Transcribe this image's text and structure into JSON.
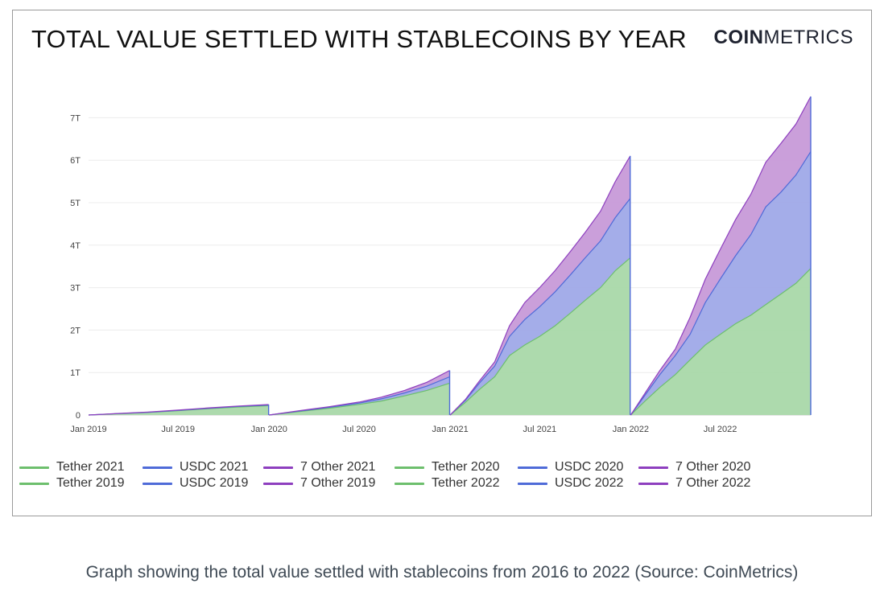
{
  "header": {
    "title": "TOTAL VALUE SETTLED WITH STABLECOINS BY YEAR",
    "brand_bold": "COIN",
    "brand_light": "METRICS"
  },
  "caption": "Graph showing the total value settled with stablecoins from 2016 to 2022 (Source: CoinMetrics)",
  "colors": {
    "tether": "#6dbf6d",
    "tether_fill": "#a9d8a9",
    "usdc": "#4f6bd8",
    "usdc_fill": "#9fa9e8",
    "other": "#8e3fbf",
    "other_fill": "#c79ad8"
  },
  "legend": [
    {
      "label": "Tether 2021",
      "color": "#6dbf6d"
    },
    {
      "label": "USDC 2021",
      "color": "#4f6bd8"
    },
    {
      "label": "7 Other 2021",
      "color": "#8e3fbf"
    },
    {
      "label": "Tether 2020",
      "color": "#6dbf6d"
    },
    {
      "label": "USDC 2020",
      "color": "#4f6bd8"
    },
    {
      "label": "7 Other 2020",
      "color": "#8e3fbf"
    },
    {
      "label": "Tether 2019",
      "color": "#6dbf6d"
    },
    {
      "label": "USDC 2019",
      "color": "#4f6bd8"
    },
    {
      "label": "7 Other 2019",
      "color": "#8e3fbf"
    },
    {
      "label": "Tether 2022",
      "color": "#6dbf6d"
    },
    {
      "label": "USDC 2022",
      "color": "#4f6bd8"
    },
    {
      "label": "7 Other 2022",
      "color": "#8e3fbf"
    }
  ],
  "chart_data": {
    "type": "area",
    "stacked": true,
    "title": "TOTAL VALUE SETTLED WITH STABLECOINS BY YEAR",
    "xlabel": "",
    "ylabel": "",
    "xlim": [
      "2019-01-01",
      "2022-12-31"
    ],
    "ylim": [
      0,
      7.5
    ],
    "y_unit": "T",
    "y_ticks": [
      0,
      1,
      2,
      3,
      4,
      5,
      6,
      7
    ],
    "y_tick_labels": [
      "0",
      "1T",
      "2T",
      "3T",
      "4T",
      "5T",
      "6T",
      "7T"
    ],
    "x_ticks": [
      "2019-01-01",
      "2019-07-01",
      "2020-01-01",
      "2020-07-01",
      "2021-01-01",
      "2021-07-01",
      "2022-01-01",
      "2022-07-01"
    ],
    "x_tick_labels": [
      "Jan 2019",
      "Jul 2019",
      "Jan 2020",
      "Jul 2020",
      "Jan 2021",
      "Jul 2021",
      "Jan 2022",
      "Jul 2022"
    ],
    "grid": true,
    "legend_position": "bottom",
    "years": [
      {
        "year": 2019,
        "dates": [
          "2019-01-01",
          "2019-03-01",
          "2019-05-01",
          "2019-07-01",
          "2019-09-01",
          "2019-11-01",
          "2019-12-31"
        ],
        "series": [
          {
            "name": "Tether 2019",
            "values": [
              0,
              0.03,
              0.06,
              0.1,
              0.15,
              0.19,
              0.22
            ]
          },
          {
            "name": "USDC 2019",
            "values": [
              0,
              0.003,
              0.005,
              0.008,
              0.01,
              0.012,
              0.014
            ]
          },
          {
            "name": "7 Other 2019",
            "values": [
              0,
              0.003,
              0.005,
              0.007,
              0.009,
              0.011,
              0.013
            ]
          }
        ]
      },
      {
        "year": 2020,
        "dates": [
          "2020-01-01",
          "2020-03-01",
          "2020-05-01",
          "2020-07-01",
          "2020-08-15",
          "2020-10-01",
          "2020-11-15",
          "2020-12-31"
        ],
        "series": [
          {
            "name": "Tether 2020",
            "values": [
              0,
              0.08,
              0.16,
              0.25,
              0.33,
              0.45,
              0.58,
              0.75
            ]
          },
          {
            "name": "USDC 2020",
            "values": [
              0,
              0.01,
              0.02,
              0.03,
              0.05,
              0.07,
              0.1,
              0.15
            ]
          },
          {
            "name": "7 Other 2020",
            "values": [
              0,
              0.01,
              0.015,
              0.025,
              0.04,
              0.06,
              0.09,
              0.15
            ]
          }
        ]
      },
      {
        "year": 2021,
        "dates": [
          "2021-01-01",
          "2021-02-01",
          "2021-03-01",
          "2021-04-01",
          "2021-05-01",
          "2021-06-01",
          "2021-07-01",
          "2021-08-01",
          "2021-09-01",
          "2021-10-01",
          "2021-11-01",
          "2021-12-01",
          "2021-12-31"
        ],
        "series": [
          {
            "name": "Tether 2021",
            "values": [
              0,
              0.3,
              0.6,
              0.9,
              1.4,
              1.65,
              1.85,
              2.1,
              2.4,
              2.7,
              3.0,
              3.4,
              3.7
            ]
          },
          {
            "name": "USDC 2021",
            "values": [
              0,
              0.05,
              0.15,
              0.25,
              0.45,
              0.6,
              0.7,
              0.8,
              0.9,
              1.0,
              1.1,
              1.25,
              1.4
            ]
          },
          {
            "name": "7 Other 2021",
            "values": [
              0,
              0.02,
              0.05,
              0.1,
              0.25,
              0.4,
              0.45,
              0.5,
              0.55,
              0.6,
              0.7,
              0.85,
              1.0
            ]
          }
        ]
      },
      {
        "year": 2022,
        "dates": [
          "2022-01-01",
          "2022-02-01",
          "2022-03-01",
          "2022-04-01",
          "2022-05-01",
          "2022-06-01",
          "2022-07-01",
          "2022-08-01",
          "2022-09-01",
          "2022-10-01",
          "2022-11-01",
          "2022-12-01",
          "2022-12-31"
        ],
        "series": [
          {
            "name": "Tether 2022",
            "values": [
              0,
              0.35,
              0.65,
              0.95,
              1.3,
              1.65,
              1.9,
              2.15,
              2.35,
              2.6,
              2.85,
              3.1,
              3.45
            ]
          },
          {
            "name": "USDC 2022",
            "values": [
              0,
              0.15,
              0.3,
              0.45,
              0.6,
              1.0,
              1.3,
              1.6,
              1.9,
              2.3,
              2.4,
              2.55,
              2.75
            ]
          },
          {
            "name": "7 Other 2022",
            "values": [
              0,
              0.05,
              0.1,
              0.15,
              0.4,
              0.55,
              0.7,
              0.85,
              0.95,
              1.05,
              1.15,
              1.2,
              1.3
            ]
          }
        ]
      }
    ]
  }
}
